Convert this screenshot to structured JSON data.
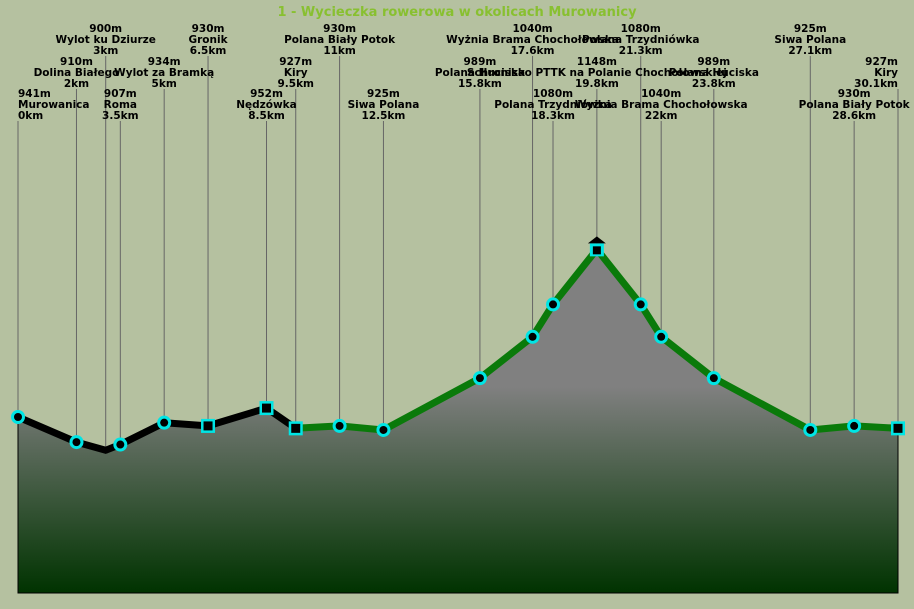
{
  "chart_data": {
    "type": "area",
    "title": "1 - Wycieczka rowerowa w okolicach Murowanicy",
    "colors": {
      "background": "#b5c1a0",
      "area_top": "#808080",
      "area_bottom": "#003300",
      "path_black": "#000000",
      "path_green": "#0a7a0a",
      "marker": "#00e5e5",
      "title": "#88c030"
    },
    "x_unit": "km",
    "y_unit": "m",
    "points": [
      {
        "name": "Murowanica",
        "elev": 941,
        "km": 0,
        "marker": "circle"
      },
      {
        "name": "Dolina Białego",
        "elev": 910,
        "km": 2,
        "marker": "circle"
      },
      {
        "name": "Wylot ku Dziurze",
        "elev": 900,
        "km": 3,
        "marker": "small-dot"
      },
      {
        "name": "Roma",
        "elev": 907,
        "km": 3.5,
        "marker": "circle"
      },
      {
        "name": "Wylot za Bramką",
        "elev": 934,
        "km": 5,
        "marker": "circle"
      },
      {
        "name": "Gronik",
        "elev": 930,
        "km": 6.5,
        "marker": "square"
      },
      {
        "name": "Nędzówka",
        "elev": 952,
        "km": 8.5,
        "marker": "square"
      },
      {
        "name": "Kiry",
        "elev": 927,
        "km": 9.5,
        "marker": "square"
      },
      {
        "name": "Polana Biały Potok",
        "elev": 930,
        "km": 11,
        "marker": "circle"
      },
      {
        "name": "Siwa Polana",
        "elev": 925,
        "km": 12.5,
        "marker": "circle"
      },
      {
        "name": "Polana Huciska",
        "elev": 989,
        "km": 15.8,
        "marker": "circle"
      },
      {
        "name": "Wyżnia Brama Chochołowska",
        "elev": 1040,
        "km": 17.6,
        "marker": "circle"
      },
      {
        "name": "Polana Trzydniówka",
        "elev": 1080,
        "km": 18.3,
        "marker": "circle"
      },
      {
        "name": "Schronisko PTTK na Polanie Chochołowskiej",
        "elev": 1148,
        "km": 19.8,
        "marker": "hut"
      },
      {
        "name": "Polana Trzydniówka",
        "elev": 1080,
        "km": 21.3,
        "marker": "circle"
      },
      {
        "name": "Wyżnia Brama Chochołowska",
        "elev": 1040,
        "km": 22,
        "marker": "circle"
      },
      {
        "name": "Polana Huciska",
        "elev": 989,
        "km": 23.8,
        "marker": "circle"
      },
      {
        "name": "Siwa Polana",
        "elev": 925,
        "km": 27.1,
        "marker": "circle"
      },
      {
        "name": "Polana Biały Potok",
        "elev": 930,
        "km": 28.6,
        "marker": "circle"
      },
      {
        "name": "Kiry",
        "elev": 927,
        "km": 30.1,
        "marker": "square"
      }
    ],
    "segments": [
      {
        "from_km": 0,
        "to_km": 9.5,
        "color": "black"
      },
      {
        "from_km": 9.5,
        "to_km": 30.1,
        "color": "green"
      }
    ],
    "xlim": [
      0,
      30.1
    ],
    "ylim": [
      600,
      1300
    ]
  }
}
